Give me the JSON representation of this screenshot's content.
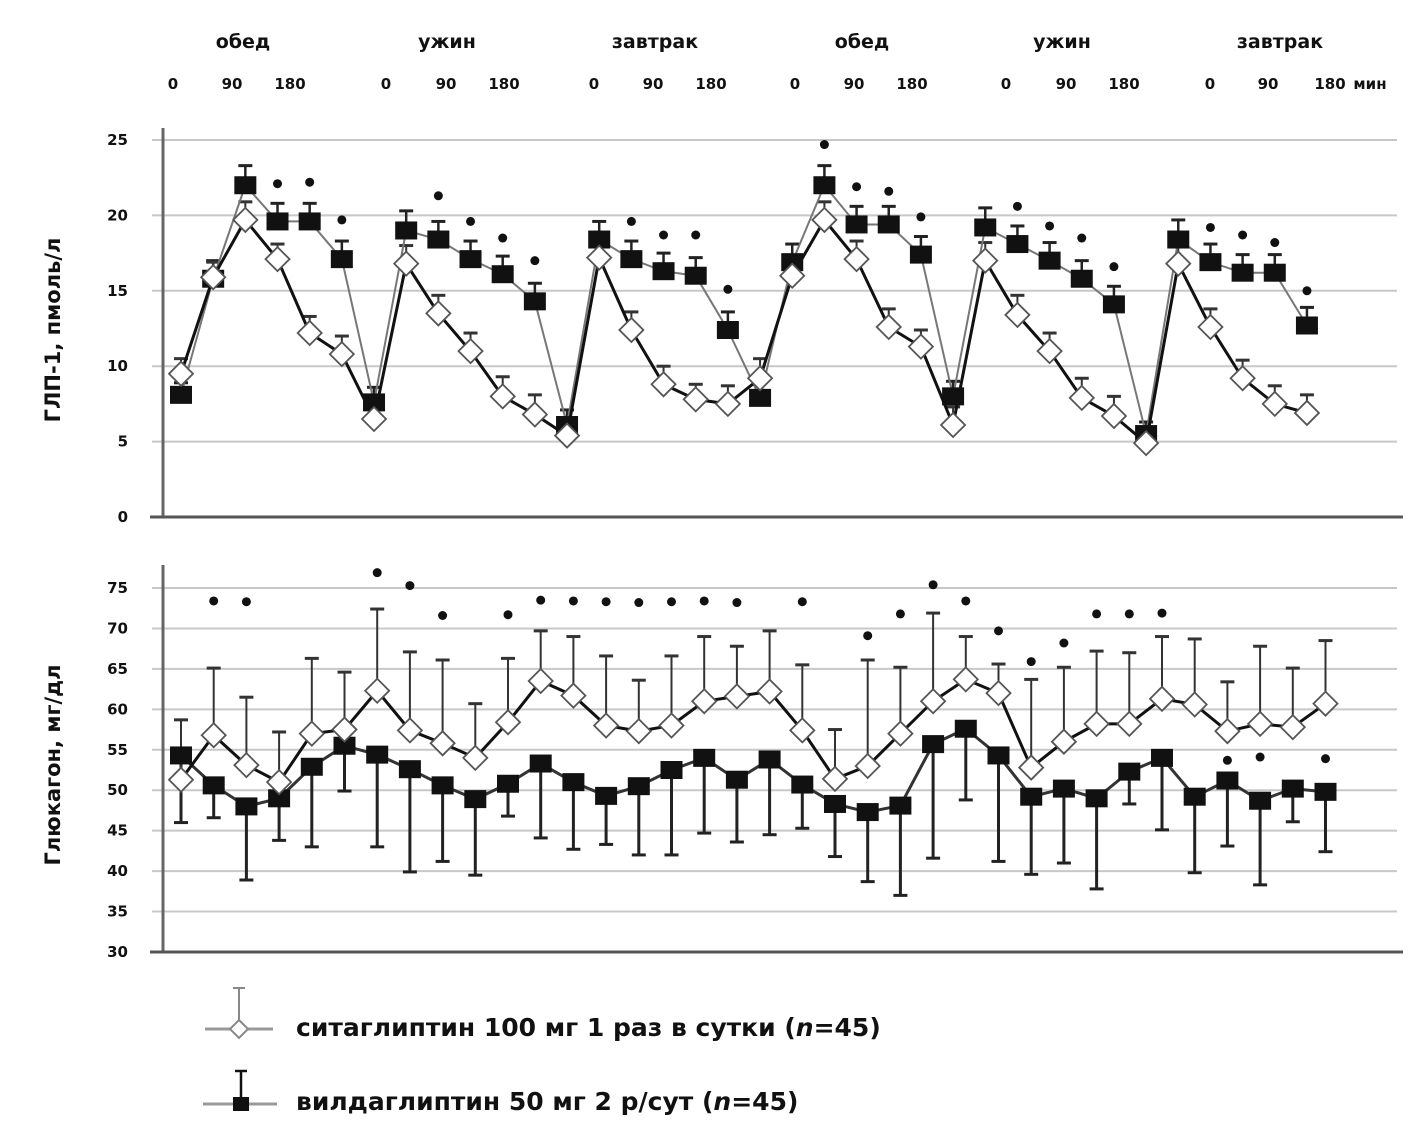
{
  "header": {
    "meals": [
      "обед",
      "ужин",
      "завтрак",
      "обед",
      "ужин",
      "завтрак"
    ],
    "minute_ticks": [
      "0",
      "90",
      "180"
    ],
    "minute_unit": "мин"
  },
  "legend": [
    {
      "label": "ситаглиптин 100 мг 1 раз в сутки (",
      "n_label": "n",
      "n_value": "=45)",
      "marker": "diamond-open",
      "color": "#888888"
    },
    {
      "label": "вилдаглиптин 50 мг 2 р/сут (",
      "n_label": "n",
      "n_value": "=45)",
      "marker": "square-filled",
      "color": "#111111"
    }
  ],
  "chart_data": [
    {
      "type": "line",
      "ylabel": "ГЛП-1, пмоль/л",
      "ylim": [
        0,
        25
      ],
      "yticks": [
        "0",
        "5",
        "10",
        "15",
        "20",
        "25"
      ],
      "grid": true,
      "error_bars": "upper",
      "series": [
        {
          "name": "ситаглиптин 100 мг 1 раз в сутки (n=45)",
          "marker": "diamond-open",
          "values": [
            9.5,
            15.9,
            19.7,
            17.1,
            12.2,
            10.8,
            6.5,
            16.8,
            13.5,
            11.0,
            8.0,
            6.8,
            5.4,
            17.2,
            12.4,
            8.8,
            7.8,
            7.5,
            9.2,
            16.0,
            19.7,
            17.1,
            12.6,
            11.3,
            6.1,
            17.0,
            13.4,
            11.0,
            7.9,
            6.7,
            4.9,
            16.8,
            12.6,
            9.2,
            7.5,
            6.9
          ],
          "error": [
            1.0,
            1.0,
            1.2,
            1.0,
            1.1,
            1.2,
            1.2,
            1.2,
            1.2,
            1.2,
            1.3,
            1.3,
            1.0,
            1.0,
            1.2,
            1.2,
            1.0,
            1.2,
            1.3,
            1.3,
            1.2,
            1.2,
            1.2,
            1.1,
            1.2,
            1.2,
            1.3,
            1.2,
            1.3,
            1.3,
            1.0,
            1.2,
            1.2,
            1.2,
            1.2,
            1.2
          ]
        },
        {
          "name": "вилдаглиптин 50 мг 2 р/сут (n=45)",
          "marker": "square-filled",
          "values": [
            8.1,
            15.8,
            22.0,
            19.6,
            19.6,
            17.1,
            7.6,
            19.0,
            18.4,
            17.1,
            16.1,
            14.3,
            6.1,
            18.4,
            17.1,
            16.3,
            16.0,
            12.4,
            7.9,
            16.9,
            22.0,
            19.4,
            19.4,
            17.4,
            8.0,
            19.2,
            18.1,
            17.0,
            15.8,
            14.1,
            5.5,
            18.4,
            16.9,
            16.2,
            16.2,
            12.7
          ],
          "error": [
            0.8,
            1.2,
            1.3,
            1.2,
            1.2,
            1.2,
            1.0,
            1.3,
            1.2,
            1.2,
            1.2,
            1.2,
            1.0,
            1.2,
            1.2,
            1.2,
            1.2,
            1.2,
            1.0,
            1.2,
            1.3,
            1.2,
            1.2,
            1.2,
            1.0,
            1.3,
            1.2,
            1.2,
            1.2,
            1.2,
            0.8,
            1.3,
            1.2,
            1.2,
            1.2,
            1.2
          ]
        }
      ],
      "significance": [
        {
          "i": 3,
          "y": 22.1
        },
        {
          "i": 4,
          "y": 22.2
        },
        {
          "i": 5,
          "y": 19.7
        },
        {
          "i": 8,
          "y": 21.3
        },
        {
          "i": 9,
          "y": 19.6
        },
        {
          "i": 10,
          "y": 18.5
        },
        {
          "i": 11,
          "y": 17.0
        },
        {
          "i": 14,
          "y": 19.6
        },
        {
          "i": 15,
          "y": 18.7
        },
        {
          "i": 16,
          "y": 18.7
        },
        {
          "i": 17,
          "y": 15.1
        },
        {
          "i": 20,
          "y": 24.7
        },
        {
          "i": 21,
          "y": 21.9
        },
        {
          "i": 22,
          "y": 21.6
        },
        {
          "i": 23,
          "y": 19.9
        },
        {
          "i": 26,
          "y": 20.6
        },
        {
          "i": 27,
          "y": 19.3
        },
        {
          "i": 28,
          "y": 18.5
        },
        {
          "i": 29,
          "y": 16.6
        },
        {
          "i": 32,
          "y": 19.2
        },
        {
          "i": 33,
          "y": 18.7
        },
        {
          "i": 34,
          "y": 18.2
        },
        {
          "i": 35,
          "y": 15.0
        }
      ]
    },
    {
      "type": "line",
      "ylabel": "Глюкагон, мг/дл",
      "ylim": [
        30,
        75
      ],
      "yticks": [
        "30",
        "35",
        "40",
        "45",
        "50",
        "55",
        "60",
        "65",
        "70",
        "75"
      ],
      "grid": true,
      "error_bars": "sitagliptin upper, vildagliptin lower",
      "series": [
        {
          "name": "ситаглиптин 100 мг 1 раз в сутки (n=45)",
          "marker": "diamond-open",
          "values": [
            51.3,
            56.8,
            53.1,
            51.0,
            57.0,
            57.5,
            62.3,
            57.4,
            55.8,
            54.0,
            58.4,
            63.5,
            61.7,
            58.0,
            57.3,
            58.0,
            61.0,
            61.6,
            62.2,
            57.4,
            51.4,
            53.0,
            57.0,
            61.0,
            63.7,
            62.0,
            52.8,
            56.0,
            58.2,
            58.2,
            61.3,
            60.6,
            57.3,
            58.2,
            57.8,
            60.7
          ],
          "upper": [
            58.7,
            65.1,
            61.5,
            57.2,
            66.3,
            64.6,
            72.4,
            67.1,
            66.1,
            60.7,
            66.3,
            69.7,
            69.0,
            66.6,
            63.6,
            66.6,
            69.0,
            67.8,
            69.7,
            65.5,
            57.5,
            66.1,
            65.2,
            71.9,
            69.0,
            65.6,
            63.7,
            65.2,
            67.2,
            67.0,
            69.0,
            68.7,
            63.4,
            67.8,
            65.1,
            68.5
          ]
        },
        {
          "name": "вилдаглиптин 50 мг 2 р/сут (n=45)",
          "marker": "square-filled",
          "values": [
            54.3,
            50.6,
            48.0,
            49.0,
            52.9,
            55.5,
            54.4,
            52.6,
            50.6,
            48.9,
            50.8,
            53.3,
            51.0,
            49.3,
            50.5,
            52.5,
            54.0,
            51.3,
            53.8,
            50.7,
            48.3,
            47.3,
            48.1,
            55.7,
            57.6,
            54.3,
            49.2,
            50.2,
            49.0,
            52.3,
            54.0,
            49.2,
            51.2,
            48.7,
            50.2,
            49.8
          ],
          "lower": [
            46.0,
            46.6,
            38.9,
            43.8,
            43.0,
            49.9,
            43.0,
            39.9,
            41.2,
            39.5,
            46.8,
            44.1,
            42.7,
            43.3,
            42.0,
            42.0,
            44.7,
            43.6,
            44.5,
            45.3,
            41.8,
            38.7,
            37.0,
            41.6,
            48.8,
            41.2,
            39.6,
            41.0,
            37.8,
            48.3,
            45.1,
            39.8,
            43.1,
            38.3,
            46.1,
            42.4
          ]
        }
      ],
      "significance": [
        {
          "i": 1,
          "y": 73.4
        },
        {
          "i": 2,
          "y": 73.3
        },
        {
          "i": 6,
          "y": 76.9
        },
        {
          "i": 7,
          "y": 75.3
        },
        {
          "i": 8,
          "y": 71.6
        },
        {
          "i": 10,
          "y": 71.7
        },
        {
          "i": 11,
          "y": 73.5
        },
        {
          "i": 12,
          "y": 73.4
        },
        {
          "i": 13,
          "y": 73.3
        },
        {
          "i": 14,
          "y": 73.2
        },
        {
          "i": 15,
          "y": 73.3
        },
        {
          "i": 16,
          "y": 73.4
        },
        {
          "i": 17,
          "y": 73.2
        },
        {
          "i": 19,
          "y": 73.3
        },
        {
          "i": 21,
          "y": 69.1
        },
        {
          "i": 22,
          "y": 71.8
        },
        {
          "i": 23,
          "y": 75.4
        },
        {
          "i": 24,
          "y": 73.4
        },
        {
          "i": 25,
          "y": 69.7
        },
        {
          "i": 26,
          "y": 65.9
        },
        {
          "i": 27,
          "y": 68.2
        },
        {
          "i": 28,
          "y": 71.8
        },
        {
          "i": 29,
          "y": 71.8
        },
        {
          "i": 30,
          "y": 71.9
        },
        {
          "i": 32,
          "y": 53.7
        },
        {
          "i": 33,
          "y": 54.1
        },
        {
          "i": 35,
          "y": 53.9
        }
      ]
    }
  ]
}
